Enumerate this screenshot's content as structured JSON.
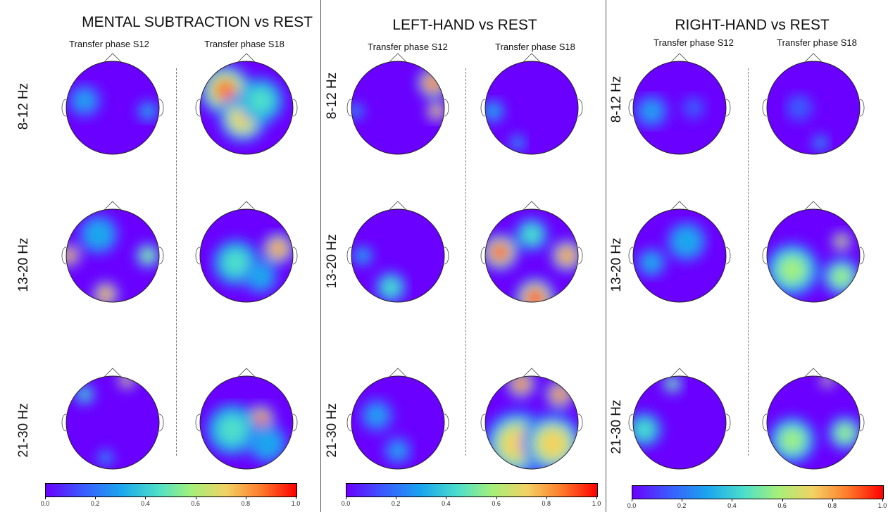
{
  "panels": [
    {
      "title": "MENTAL SUBTRACTION vs REST",
      "sub1": "Transfer phase S12",
      "sub2": "Transfer phase S18"
    },
    {
      "title": "LEFT-HAND vs REST",
      "sub1": "Transfer phase S12",
      "sub2": "Transfer phase S18"
    },
    {
      "title": "RIGHT-HAND vs REST",
      "sub1": "Transfer phase S12",
      "sub2": "Transfer phase S18"
    }
  ],
  "bands": [
    "8-12 Hz",
    "13-20  Hz",
    "21-30 Hz"
  ],
  "colorbar_ticks": [
    "0.0",
    "0.2",
    "0.4",
    "0.6",
    "0.8",
    "1.0"
  ],
  "colormap": [
    "#6a00ff",
    "#3a5cff",
    "#1aa6ee",
    "#4fe0c8",
    "#a4f07a",
    "#f2d264",
    "#ff7a2a",
    "#ff0000"
  ]
}
